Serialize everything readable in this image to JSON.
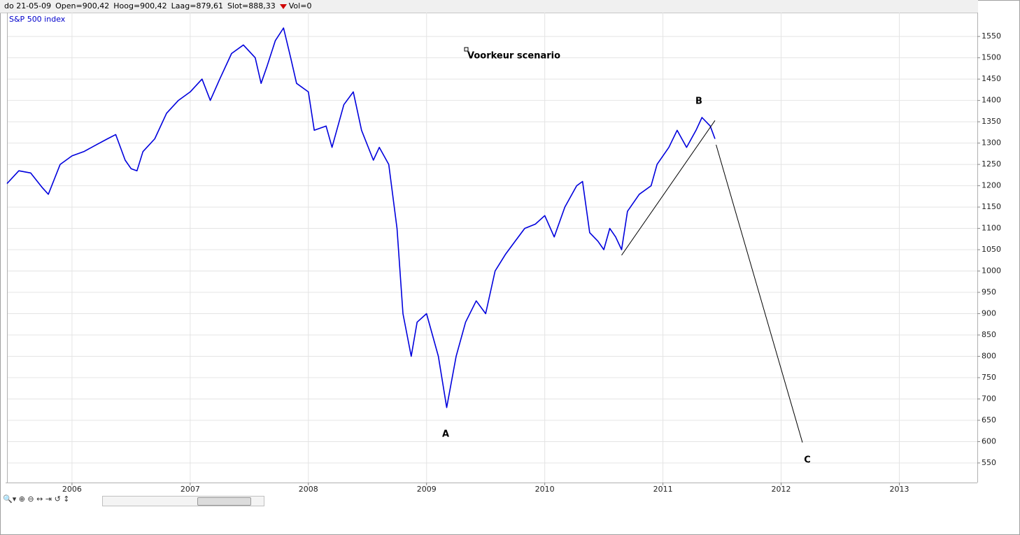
{
  "header": {
    "date": "do 21-05-09",
    "open": "Open=900,42",
    "high": "Hoog=900,42",
    "low": "Laag=879,61",
    "close": "Slot=888,33",
    "vol": "Vol=0"
  },
  "chart_data": {
    "type": "line",
    "title": "S&P 500 index",
    "annotation": "Voorkeur scenario",
    "wave_labels": [
      "A",
      "B",
      "C"
    ],
    "x": [
      2005.45,
      2005.55,
      2005.65,
      2005.75,
      2005.8,
      2005.9,
      2006.0,
      2006.1,
      2006.2,
      2006.3,
      2006.37,
      2006.45,
      2006.5,
      2006.55,
      2006.6,
      2006.7,
      2006.8,
      2006.9,
      2007.0,
      2007.1,
      2007.17,
      2007.25,
      2007.35,
      2007.45,
      2007.55,
      2007.6,
      2007.65,
      2007.72,
      2007.79,
      2007.85,
      2007.9,
      2008.0,
      2008.05,
      2008.15,
      2008.2,
      2008.3,
      2008.38,
      2008.45,
      2008.55,
      2008.6,
      2008.68,
      2008.75,
      2008.8,
      2008.87,
      2008.92,
      2009.0,
      2009.1,
      2009.17,
      2009.25,
      2009.33,
      2009.42,
      2009.5,
      2009.58,
      2009.67,
      2009.75,
      2009.83,
      2009.92,
      2010.0,
      2010.08,
      2010.17,
      2010.27,
      2010.32,
      2010.38,
      2010.45,
      2010.5,
      2010.55,
      2010.6,
      2010.65,
      2010.7,
      2010.8,
      2010.9,
      2010.95,
      2011.05,
      2011.12,
      2011.2,
      2011.28,
      2011.33,
      2011.4,
      2011.44
    ],
    "series": [
      {
        "color": "#0000dd",
        "values": [
          1205,
          1235,
          1230,
          1195,
          1180,
          1250,
          1270,
          1280,
          1295,
          1310,
          1320,
          1260,
          1240,
          1235,
          1280,
          1310,
          1370,
          1400,
          1420,
          1450,
          1400,
          1450,
          1510,
          1530,
          1500,
          1440,
          1480,
          1540,
          1570,
          1500,
          1440,
          1420,
          1330,
          1340,
          1290,
          1390,
          1420,
          1330,
          1260,
          1290,
          1250,
          1100,
          900,
          800,
          880,
          900,
          800,
          680,
          800,
          880,
          930,
          900,
          1000,
          1040,
          1070,
          1100,
          1110,
          1130,
          1080,
          1150,
          1200,
          1210,
          1090,
          1070,
          1050,
          1100,
          1080,
          1050,
          1140,
          1180,
          1200,
          1250,
          1290,
          1330,
          1290,
          1330,
          1360,
          1340,
          1310
        ]
      }
    ],
    "trendlines": [
      {
        "color": "#000000",
        "x": [
          2010.65,
          2011.44
        ],
        "values": [
          1037,
          1353
        ]
      },
      {
        "color": "#000000",
        "x": [
          2011.45,
          2012.18
        ],
        "values": [
          1296,
          598
        ]
      }
    ],
    "xlim": [
      2005.45,
      2013.66
    ],
    "xticks": [
      2006,
      2007,
      2008,
      2009,
      2010,
      2011,
      2012,
      2013
    ],
    "ylim": [
      504,
      1606
    ],
    "yticks": [
      550,
      600,
      650,
      700,
      750,
      800,
      850,
      900,
      950,
      1000,
      1050,
      1100,
      1150,
      1200,
      1250,
      1300,
      1350,
      1400,
      1450,
      1500,
      1550
    ],
    "grid": true
  }
}
